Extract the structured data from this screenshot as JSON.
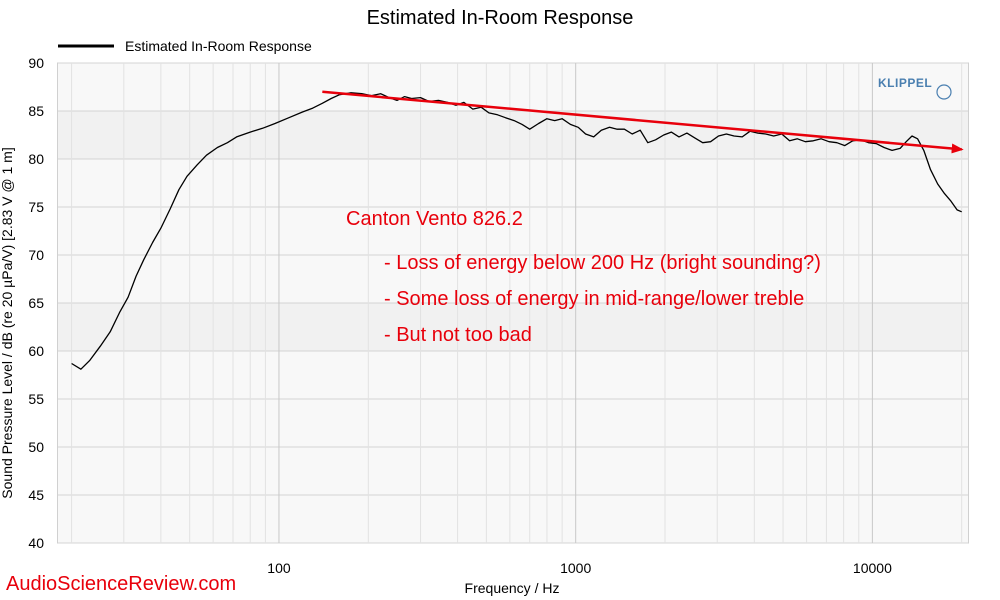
{
  "chart_data": {
    "type": "line",
    "title": "Estimated In-Room Response",
    "xlabel": "Frequency / Hz",
    "ylabel": "Sound Pressure Level / dB (re 20 µPa/V)  [2.83  V @ 1  m]",
    "x_scale": "log",
    "xlim": [
      18,
      21000
    ],
    "ylim": [
      40,
      90
    ],
    "x_ticks": [
      100,
      1000,
      10000
    ],
    "x_tick_labels": [
      "100",
      "1000",
      "10000"
    ],
    "y_ticks": [
      40,
      45,
      50,
      55,
      60,
      65,
      70,
      75,
      80,
      85,
      90
    ],
    "y_tick_labels": [
      "40",
      "45",
      "50",
      "55",
      "60",
      "65",
      "70",
      "75",
      "80",
      "85",
      "90"
    ],
    "grid": true,
    "legend_position": "top-left",
    "series": [
      {
        "name": "Estimated In-Room Response",
        "color": "#000000",
        "points": [
          [
            20,
            58.7
          ],
          [
            21.5,
            58.1
          ],
          [
            23,
            59.0
          ],
          [
            25,
            60.5
          ],
          [
            27,
            62.0
          ],
          [
            29,
            64.0
          ],
          [
            31,
            65.6
          ],
          [
            33,
            67.8
          ],
          [
            35,
            69.5
          ],
          [
            37.5,
            71.3
          ],
          [
            40,
            72.8
          ],
          [
            43,
            74.8
          ],
          [
            46,
            76.8
          ],
          [
            49,
            78.2
          ],
          [
            53,
            79.4
          ],
          [
            57,
            80.4
          ],
          [
            62,
            81.2
          ],
          [
            67,
            81.7
          ],
          [
            72,
            82.3
          ],
          [
            80,
            82.8
          ],
          [
            88,
            83.2
          ],
          [
            97,
            83.7
          ],
          [
            108,
            84.3
          ],
          [
            120,
            84.9
          ],
          [
            130,
            85.3
          ],
          [
            140,
            85.8
          ],
          [
            150,
            86.3
          ],
          [
            160,
            86.7
          ],
          [
            175,
            86.9
          ],
          [
            190,
            86.8
          ],
          [
            205,
            86.6
          ],
          [
            220,
            86.8
          ],
          [
            235,
            86.4
          ],
          [
            250,
            86.1
          ],
          [
            265,
            86.5
          ],
          [
            280,
            86.3
          ],
          [
            300,
            86.4
          ],
          [
            320,
            86.0
          ],
          [
            345,
            86.1
          ],
          [
            370,
            85.9
          ],
          [
            395,
            85.6
          ],
          [
            420,
            85.9
          ],
          [
            450,
            85.2
          ],
          [
            480,
            85.4
          ],
          [
            510,
            84.8
          ],
          [
            545,
            84.6
          ],
          [
            580,
            84.3
          ],
          [
            620,
            84.0
          ],
          [
            660,
            83.6
          ],
          [
            700,
            83.1
          ],
          [
            750,
            83.7
          ],
          [
            800,
            84.2
          ],
          [
            850,
            84.0
          ],
          [
            900,
            84.2
          ],
          [
            960,
            83.6
          ],
          [
            1020,
            83.3
          ],
          [
            1080,
            82.6
          ],
          [
            1150,
            82.3
          ],
          [
            1220,
            83.0
          ],
          [
            1300,
            83.3
          ],
          [
            1380,
            83.1
          ],
          [
            1460,
            83.1
          ],
          [
            1550,
            82.6
          ],
          [
            1650,
            83.0
          ],
          [
            1750,
            81.7
          ],
          [
            1860,
            82.0
          ],
          [
            1980,
            82.5
          ],
          [
            2100,
            82.8
          ],
          [
            2230,
            82.3
          ],
          [
            2370,
            82.7
          ],
          [
            2520,
            82.2
          ],
          [
            2680,
            81.7
          ],
          [
            2850,
            81.8
          ],
          [
            3030,
            82.4
          ],
          [
            3220,
            82.6
          ],
          [
            3420,
            82.4
          ],
          [
            3640,
            82.3
          ],
          [
            3870,
            82.9
          ],
          [
            4110,
            82.7
          ],
          [
            4370,
            82.6
          ],
          [
            4650,
            82.4
          ],
          [
            4950,
            82.6
          ],
          [
            5260,
            81.9
          ],
          [
            5590,
            82.1
          ],
          [
            5940,
            81.8
          ],
          [
            6320,
            81.9
          ],
          [
            6720,
            82.1
          ],
          [
            7140,
            81.8
          ],
          [
            7590,
            81.7
          ],
          [
            8070,
            81.4
          ],
          [
            8580,
            81.9
          ],
          [
            9120,
            82.0
          ],
          [
            9700,
            81.7
          ],
          [
            10300,
            81.6
          ],
          [
            10950,
            81.2
          ],
          [
            11650,
            80.9
          ],
          [
            12400,
            81.1
          ],
          [
            13000,
            81.8
          ],
          [
            13600,
            82.4
          ],
          [
            14200,
            82.1
          ],
          [
            14900,
            80.9
          ],
          [
            15700,
            78.9
          ],
          [
            16600,
            77.4
          ],
          [
            17500,
            76.4
          ],
          [
            18400,
            75.6
          ],
          [
            19300,
            74.7
          ],
          [
            20000,
            74.5
          ]
        ]
      }
    ],
    "trend_line": {
      "from": [
        140,
        87
      ],
      "to": [
        20000,
        81
      ],
      "color": "#e8000b"
    },
    "annotations": [
      "Canton Vento 826.2",
      "- Loss of energy below 200 Hz (bright sounding?)",
      "- Some loss of energy in mid-range/lower treble",
      "- But not too bad"
    ],
    "watermark": "AudioScienceReview.com",
    "logo": "KLIPPEL"
  }
}
